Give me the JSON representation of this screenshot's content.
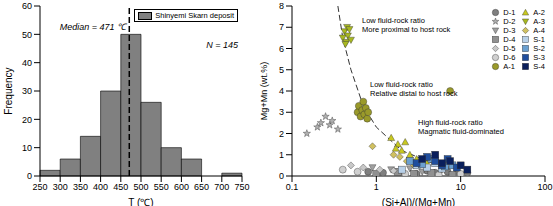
{
  "chart_data": [
    {
      "type": "histogram",
      "name": "Shinyemi Skarn deposit",
      "color": "#808080",
      "legend": "upper right",
      "bins": [
        250,
        300,
        350,
        400,
        450,
        500,
        550,
        600,
        650,
        700,
        750
      ],
      "values": [
        2,
        6,
        14,
        30,
        50,
        26,
        10,
        6,
        0,
        1
      ],
      "xlim": [
        250,
        750
      ],
      "xticks": [
        250,
        300,
        350,
        400,
        450,
        500,
        550,
        600,
        650,
        700,
        750
      ],
      "ylim": [
        0,
        60
      ],
      "yticks": [
        0,
        10,
        20,
        30,
        40,
        50,
        60
      ],
      "x_label": "T (℃)",
      "y_label": "Frequency",
      "median_line": {
        "value": 471,
        "line_style": "dashed"
      },
      "annotations": [
        "Median = 471 ℃",
        "N = 145"
      ]
    },
    {
      "type": "scatter",
      "log": "x",
      "legend": "upper right",
      "xlim": [
        0.1,
        100
      ],
      "xticks": [
        0.1,
        1,
        10,
        100
      ],
      "ylim": [
        0,
        8
      ],
      "yticks": [
        0,
        1,
        2,
        3,
        4,
        5,
        6,
        7,
        8
      ],
      "x_label": "(Si+Al)/(Mg+Mn)",
      "y_label": "Mg+Mn (wt.%)",
      "series": [
        {
          "name": "D-1",
          "color": "#7f7f7f",
          "marker": "circle",
          "x": [
            0.8,
            1.2,
            2,
            3,
            4,
            5,
            7,
            9,
            12
          ],
          "y": [
            0.2,
            0.15,
            0.2,
            0.1,
            0.25,
            0.15,
            0.2,
            0.1,
            0.15
          ]
        },
        {
          "name": "D-2",
          "color": "#b0b0b0",
          "marker": "star",
          "x": [
            0.15,
            0.2,
            0.22,
            0.25,
            0.28,
            0.3,
            0.35
          ],
          "y": [
            2.0,
            2.3,
            2.5,
            2.8,
            2.4,
            2.6,
            2.2
          ]
        },
        {
          "name": "D-3",
          "color": "#a0a0a0",
          "marker": "triangle-down",
          "x": [
            0.9,
            1.5,
            2.5,
            3.5,
            6
          ],
          "y": [
            0.4,
            0.3,
            0.35,
            0.2,
            0.3
          ]
        },
        {
          "name": "D-4",
          "color": "#909090",
          "marker": "square",
          "x": [
            1,
            1.8,
            2.8,
            4.5,
            8
          ],
          "y": [
            0.1,
            0.2,
            0.1,
            0.15,
            0.05
          ]
        },
        {
          "name": "D-5",
          "color": "#c8c8c8",
          "marker": "diamond",
          "x": [
            0.5,
            0.7,
            1.1,
            1.6
          ],
          "y": [
            0.5,
            0.4,
            0.3,
            0.25
          ]
        },
        {
          "name": "D-6",
          "color": "#d0d0d0",
          "marker": "circle",
          "x": [
            0.4,
            0.6,
            2.2,
            5.5,
            10
          ],
          "y": [
            0.3,
            0.2,
            0.1,
            0.05,
            0.1
          ]
        },
        {
          "name": "A-1",
          "color": "#9a9a2a",
          "marker": "circle",
          "x": [
            0.6,
            0.62,
            0.65,
            0.68,
            0.7,
            0.72,
            0.75,
            0.78,
            0.8,
            7.5
          ],
          "y": [
            3.0,
            3.3,
            2.8,
            3.1,
            3.5,
            2.9,
            3.2,
            2.7,
            3.0,
            4.0
          ]
        },
        {
          "name": "A-2",
          "color": "#c8c820",
          "marker": "triangle",
          "x": [
            1.5,
            1.8,
            2.0,
            2.2,
            2.5,
            1.7,
            3.0,
            4
          ],
          "y": [
            1.8,
            1.5,
            1.2,
            1.6,
            1.0,
            1.3,
            0.8,
            0.6
          ]
        },
        {
          "name": "A-3",
          "color": "#a8b820",
          "marker": "triangle-down",
          "x": [
            0.4,
            0.42,
            0.44,
            0.45,
            0.46,
            0.48,
            0.5,
            0.43
          ],
          "y": [
            6.5,
            6.8,
            6.3,
            7.0,
            6.6,
            6.9,
            6.4,
            6.2
          ]
        },
        {
          "name": "A-4",
          "color": "#d0c060",
          "marker": "diamond",
          "x": [
            1.6,
            1.9,
            2.3,
            2.8,
            0.9
          ],
          "y": [
            1.0,
            0.9,
            0.7,
            0.5,
            1.4
          ]
        },
        {
          "name": "S-1",
          "color": "#b8d0e8",
          "marker": "square",
          "x": [
            2,
            3,
            4,
            5,
            6
          ],
          "y": [
            0.3,
            0.5,
            0.4,
            0.6,
            0.35
          ]
        },
        {
          "name": "S-2",
          "color": "#6a9fd0",
          "marker": "square",
          "x": [
            2.5,
            3.5,
            4.5,
            6.5,
            8
          ],
          "y": [
            0.7,
            0.55,
            0.8,
            0.45,
            0.5
          ]
        },
        {
          "name": "S-3",
          "color": "#1f4e9e",
          "marker": "square",
          "x": [
            3,
            4,
            5,
            6,
            7,
            9
          ],
          "y": [
            0.6,
            0.9,
            0.7,
            0.5,
            0.8,
            0.4
          ]
        },
        {
          "name": "S-4",
          "color": "#0a1f5c",
          "marker": "square",
          "x": [
            3.5,
            5,
            6,
            7.5,
            10,
            12
          ],
          "y": [
            0.8,
            1.0,
            0.6,
            0.7,
            0.5,
            0.3
          ]
        }
      ],
      "curve": {
        "x": [
          0.35,
          0.4,
          0.5,
          0.7,
          1,
          2,
          5,
          10
        ],
        "y": [
          8,
          6.5,
          5,
          3.3,
          2.3,
          1.2,
          0.55,
          0.3
        ],
        "line_style": "dashed"
      },
      "annotations": [
        [
          "Low fluid-rock ratio",
          "More proximal to host rock"
        ],
        [
          "Low fluid-rock ratio",
          "Relative distal to host rock"
        ],
        [
          "High fluid-rock ratio",
          "Magmatic fluid-dominated"
        ]
      ]
    }
  ]
}
